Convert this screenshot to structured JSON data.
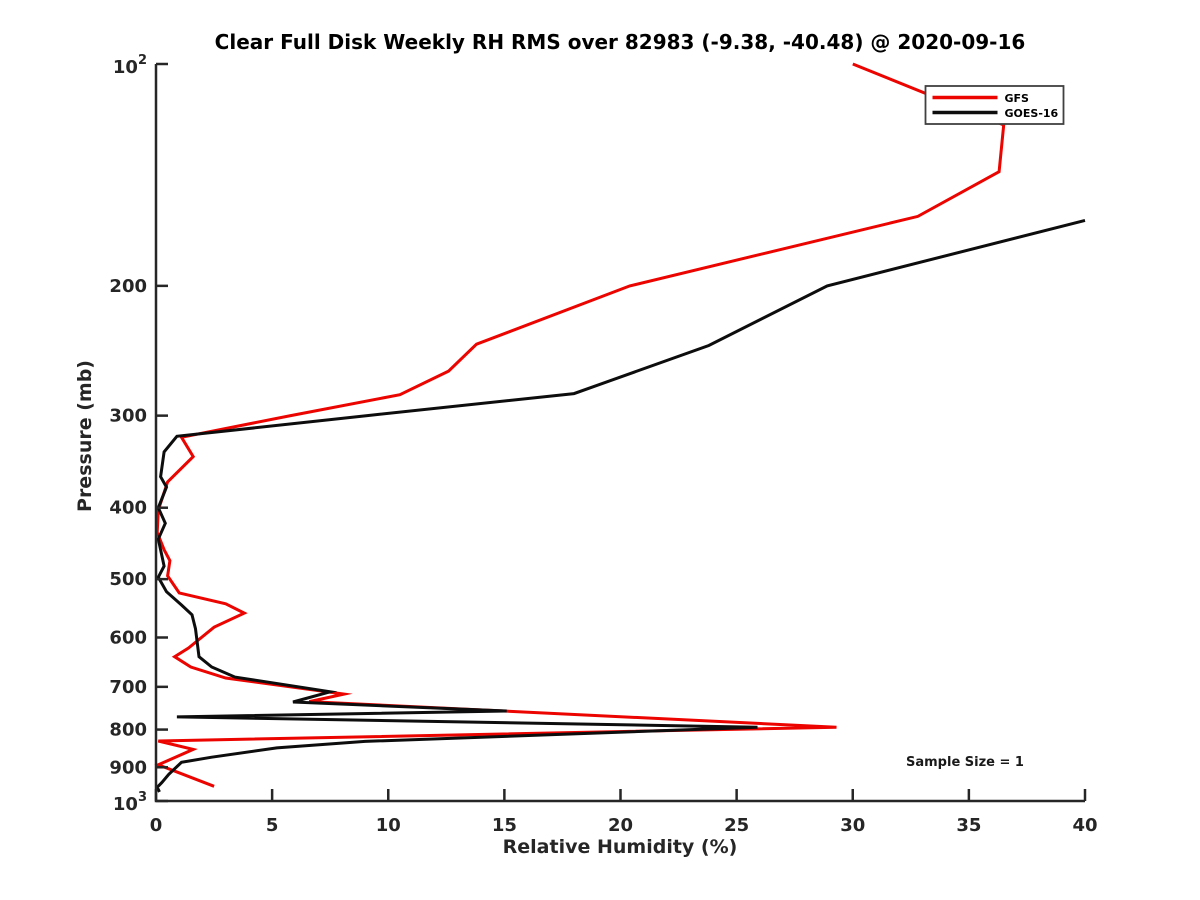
{
  "chart_data": {
    "type": "line",
    "title": "Clear Full Disk Weekly RH RMS over 82983 (-9.38, -40.48) @ 2020-09-16",
    "xlabel": "Relative Humidity (%)",
    "ylabel": "Pressure (mb)",
    "x_scale": "linear",
    "y_scale": "log",
    "xlim": [
      0,
      40
    ],
    "ylim": [
      100,
      1000
    ],
    "y_axis_inverted": true,
    "grid": false,
    "axis_color": "#262626",
    "x_ticks": [
      0,
      5,
      10,
      15,
      20,
      25,
      30,
      35,
      40
    ],
    "y_ticks": [
      {
        "value": 100,
        "base": "10",
        "exp": "2"
      },
      {
        "value": 200,
        "label": "200"
      },
      {
        "value": 300,
        "label": "300"
      },
      {
        "value": 400,
        "label": "400"
      },
      {
        "value": 500,
        "label": "500"
      },
      {
        "value": 600,
        "label": "600"
      },
      {
        "value": 700,
        "label": "700"
      },
      {
        "value": 800,
        "label": "800"
      },
      {
        "value": 900,
        "label": "900"
      },
      {
        "value": 1000,
        "base": "10",
        "exp": "3"
      }
    ],
    "legend": {
      "position": "top-right",
      "entries": [
        {
          "name": "GFS",
          "color": "#eb0400"
        },
        {
          "name": "GOES-16",
          "color": "#0d0d0d"
        }
      ]
    },
    "annotation": {
      "text": "Sample Size = 1",
      "location": "bottom-right"
    },
    "series": [
      {
        "name": "GFS",
        "color": "#eb0400",
        "points_format": [
          "pressure_mb",
          "rh_percent"
        ],
        "points": [
          [
            100,
            30.0
          ],
          [
            121,
            36.5
          ],
          [
            140,
            36.3
          ],
          [
            161,
            32.8
          ],
          [
            200,
            20.4
          ],
          [
            240,
            13.8
          ],
          [
            261,
            12.6
          ],
          [
            281,
            10.5
          ],
          [
            300,
            5.8
          ],
          [
            321,
            1.1
          ],
          [
            341,
            1.6
          ],
          [
            369,
            0.5
          ],
          [
            403,
            0.1
          ],
          [
            432,
            0.05
          ],
          [
            456,
            0.35
          ],
          [
            472,
            0.6
          ],
          [
            495,
            0.5
          ],
          [
            522,
            1.0
          ],
          [
            540,
            3.0
          ],
          [
            556,
            3.8
          ],
          [
            581,
            2.5
          ],
          [
            620,
            1.4
          ],
          [
            637,
            0.8
          ],
          [
            658,
            1.5
          ],
          [
            681,
            3.0
          ],
          [
            716,
            8.1
          ],
          [
            733,
            6.6
          ],
          [
            794,
            29.3
          ],
          [
            829,
            0.1
          ],
          [
            851,
            1.6
          ],
          [
            893,
            0.1
          ],
          [
            955,
            2.5
          ]
        ]
      },
      {
        "name": "GOES-16",
        "color": "#0d0d0d",
        "points_format": [
          "pressure_mb",
          "rh_percent"
        ],
        "points": [
          [
            163,
            40.0
          ],
          [
            200,
            28.9
          ],
          [
            241,
            23.8
          ],
          [
            280,
            18.0
          ],
          [
            300,
            9.1
          ],
          [
            320,
            0.9
          ],
          [
            336,
            0.35
          ],
          [
            363,
            0.2
          ],
          [
            375,
            0.45
          ],
          [
            400,
            0.1
          ],
          [
            420,
            0.4
          ],
          [
            441,
            0.1
          ],
          [
            480,
            0.35
          ],
          [
            497,
            0.1
          ],
          [
            520,
            0.45
          ],
          [
            542,
            1.1
          ],
          [
            559,
            1.55
          ],
          [
            584,
            1.7
          ],
          [
            637,
            1.85
          ],
          [
            658,
            2.4
          ],
          [
            679,
            3.4
          ],
          [
            711,
            7.5
          ],
          [
            734,
            5.9
          ],
          [
            755,
            15.1
          ],
          [
            769,
            0.9
          ],
          [
            794,
            25.9
          ],
          [
            830,
            9.0
          ],
          [
            847,
            5.2
          ],
          [
            872,
            2.4
          ],
          [
            886,
            1.1
          ],
          [
            920,
            0.55
          ],
          [
            944,
            0.25
          ],
          [
            958,
            0.05
          ],
          [
            972,
            0.15
          ]
        ]
      }
    ]
  }
}
